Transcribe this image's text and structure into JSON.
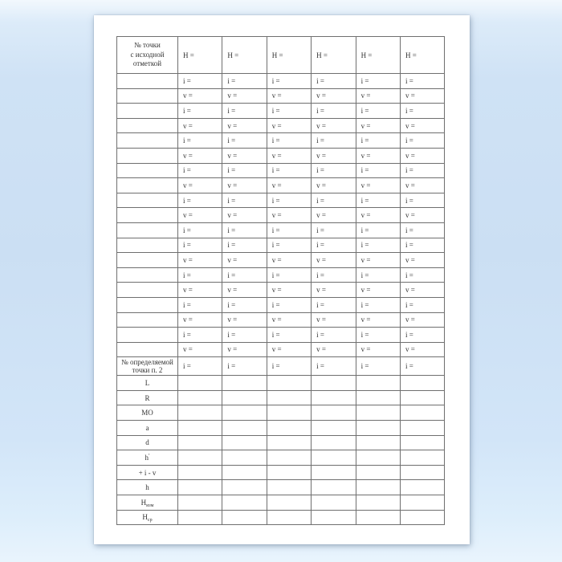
{
  "document": {
    "table": {
      "header": {
        "corner_lines": [
          "№ точки",
          "с исходной",
          "отметкой"
        ],
        "h_label": "Н ="
      },
      "upper_rows": [
        "i =",
        "v =",
        "i =",
        "v =",
        "i =",
        "v =",
        "i =",
        "v =",
        "i =",
        "v =",
        "i =",
        "i =",
        "v =",
        "i =",
        "v =",
        "i =",
        "v =",
        "i =",
        "v ="
      ],
      "determined_row": {
        "label_lines": [
          "№ определяемой",
          "точки п. 2"
        ],
        "cell_text": "i ="
      },
      "bottom_rows": [
        {
          "main": "L"
        },
        {
          "main": "R"
        },
        {
          "main": "МО"
        },
        {
          "main": "a"
        },
        {
          "main": "d"
        },
        {
          "main": "h",
          "sup": "′"
        },
        {
          "main": "+ i - v"
        },
        {
          "main": "h"
        },
        {
          "main": "Н",
          "sub": "изм"
        },
        {
          "main": "Н",
          "sub": "ср"
        }
      ],
      "data_column_count": 6
    },
    "colors": {
      "canvas_blue": "#cbdff3",
      "page_background": "#ffffff",
      "table_border": "#6f6f6f",
      "text": "#333333"
    }
  }
}
